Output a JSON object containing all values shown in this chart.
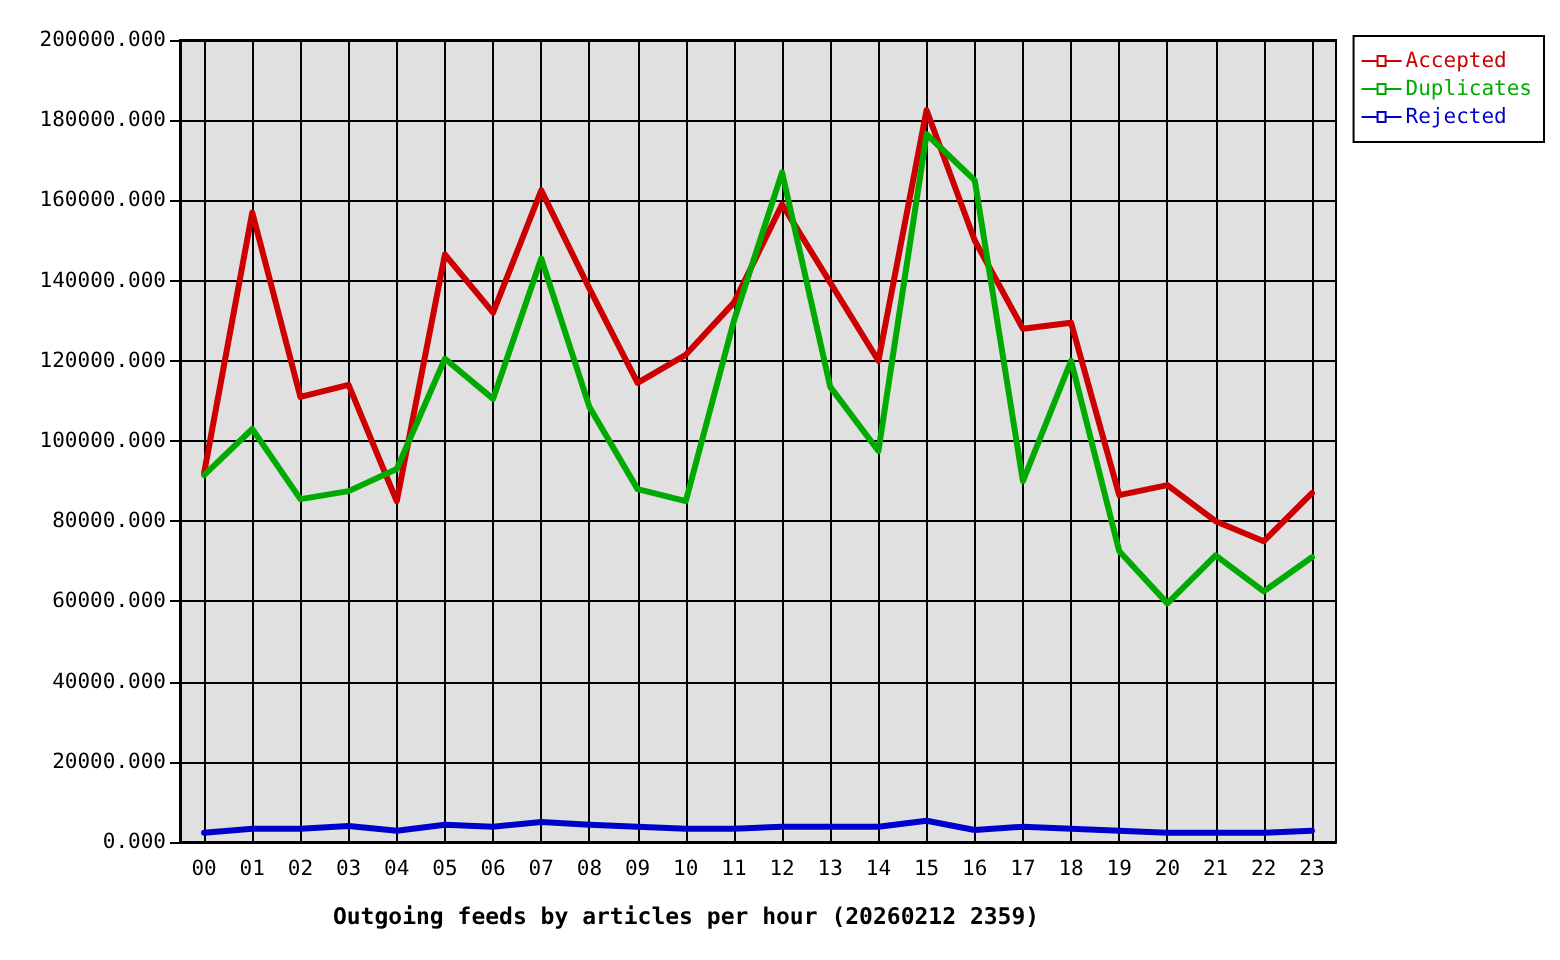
{
  "chart_data": {
    "type": "line",
    "xlabel": "Outgoing feeds by articles per hour (20260212 2359)",
    "categories": [
      "00",
      "01",
      "02",
      "03",
      "04",
      "05",
      "06",
      "07",
      "08",
      "09",
      "10",
      "11",
      "12",
      "13",
      "14",
      "15",
      "16",
      "17",
      "18",
      "19",
      "20",
      "21",
      "22",
      "23"
    ],
    "series": [
      {
        "name": "Accepted",
        "color": "#cc0000",
        "values": [
          92000,
          157000,
          111000,
          114000,
          85000,
          146500,
          132000,
          162500,
          138000,
          114500,
          121500,
          134500,
          159000,
          139500,
          120000,
          182500,
          150000,
          128000,
          129500,
          86500,
          89000,
          80000,
          75000,
          87000
        ]
      },
      {
        "name": "Duplicates",
        "color": "#00aa00",
        "values": [
          91500,
          103000,
          85500,
          87500,
          93000,
          120500,
          110500,
          145500,
          108500,
          88000,
          85000,
          130000,
          167000,
          113500,
          97500,
          176500,
          165000,
          90000,
          120000,
          72500,
          59500,
          71500,
          62500,
          71000
        ]
      },
      {
        "name": "Rejected",
        "color": "#0000cc",
        "values": [
          2300,
          3300,
          3300,
          4000,
          2800,
          4300,
          3800,
          5000,
          4300,
          3800,
          3300,
          3300,
          3800,
          3800,
          3800,
          5300,
          3000,
          3800,
          3300,
          2800,
          2300,
          2300,
          2300,
          2800
        ]
      }
    ],
    "ylim": [
      0,
      200000
    ],
    "yticks": [
      {
        "value": 0,
        "label": "0.000"
      },
      {
        "value": 20000,
        "label": "20000.000"
      },
      {
        "value": 40000,
        "label": "40000.000"
      },
      {
        "value": 60000,
        "label": "60000.000"
      },
      {
        "value": 80000,
        "label": "80000.000"
      },
      {
        "value": 100000,
        "label": "100000.000"
      },
      {
        "value": 120000,
        "label": "120000.000"
      },
      {
        "value": 140000,
        "label": "140000.000"
      },
      {
        "value": 160000,
        "label": "160000.000"
      },
      {
        "value": 180000,
        "label": "180000.000"
      },
      {
        "value": 200000,
        "label": "200000.000"
      }
    ],
    "grid": true,
    "legend": "top right",
    "marker": "none"
  }
}
